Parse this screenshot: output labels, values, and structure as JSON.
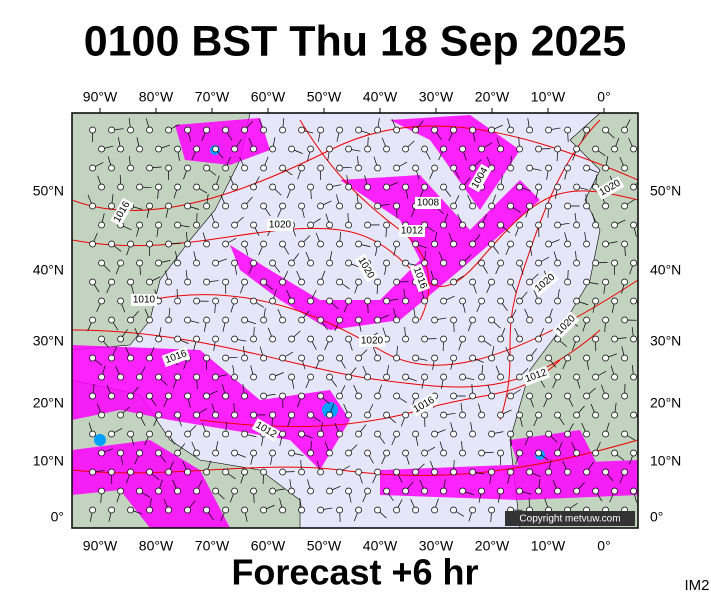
{
  "header": {
    "title": "0100 BST Thu 18 Sep 2025"
  },
  "map": {
    "lon_labels": [
      "90°W",
      "80°W",
      "70°W",
      "60°W",
      "50°W",
      "40°W",
      "30°W",
      "20°W",
      "10°W",
      "0°"
    ],
    "lat_labels": [
      "50°N",
      "40°N",
      "30°N",
      "20°N",
      "10°N",
      "0°"
    ],
    "isobar_labels": [
      "1016",
      "1020",
      "1008",
      "1012",
      "1004",
      "1020",
      "1020",
      "1016",
      "1020",
      "1020",
      "1012",
      "1016",
      "1016",
      "1012",
      "1010",
      "1020"
    ],
    "copyright": "Copyright metvuw.com"
  },
  "footer": {
    "forecast": "Forecast +6 hr",
    "code": "IM2"
  }
}
